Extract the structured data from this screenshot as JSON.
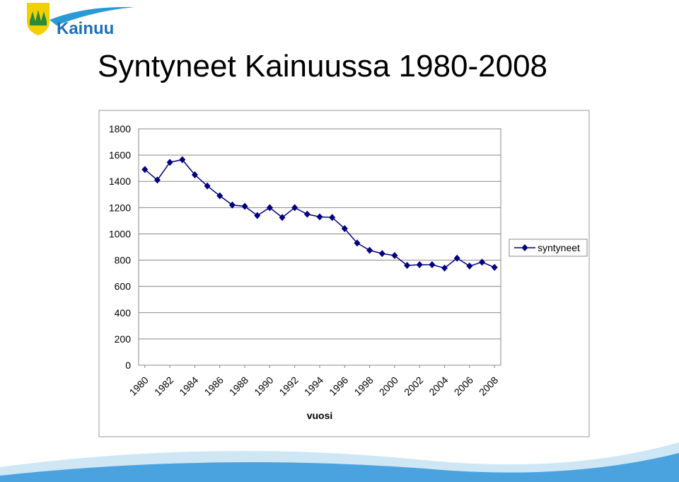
{
  "logo": "Kainuu",
  "chart_data": {
    "type": "line",
    "title": "Syntyneet Kainuussa 1980-2008",
    "xlabel": "vuosi",
    "x": [
      1980,
      1981,
      1982,
      1983,
      1984,
      1985,
      1986,
      1987,
      1988,
      1989,
      1990,
      1991,
      1992,
      1993,
      1994,
      1995,
      1996,
      1997,
      1998,
      1999,
      2000,
      2001,
      2002,
      2003,
      2004,
      2005,
      2006,
      2007,
      2008
    ],
    "series": [
      {
        "name": "syntyneet",
        "color": "#000080",
        "values": [
          1490,
          1410,
          1545,
          1565,
          1450,
          1365,
          1290,
          1220,
          1210,
          1140,
          1200,
          1125,
          1200,
          1150,
          1130,
          1125,
          1040,
          930,
          875,
          850,
          835,
          760,
          765,
          765,
          740,
          815,
          755,
          785,
          745
        ]
      }
    ],
    "xlim": [
      1979.5,
      2008.5
    ],
    "xticks": [
      1980,
      1982,
      1984,
      1986,
      1988,
      1990,
      1992,
      1994,
      1996,
      1998,
      2000,
      2002,
      2004,
      2006,
      2008
    ],
    "ylim": [
      0,
      1800
    ],
    "yticks": [
      0,
      200,
      400,
      600,
      800,
      1000,
      1200,
      1400,
      1600,
      1800
    ],
    "grid": true,
    "legend": "right"
  }
}
